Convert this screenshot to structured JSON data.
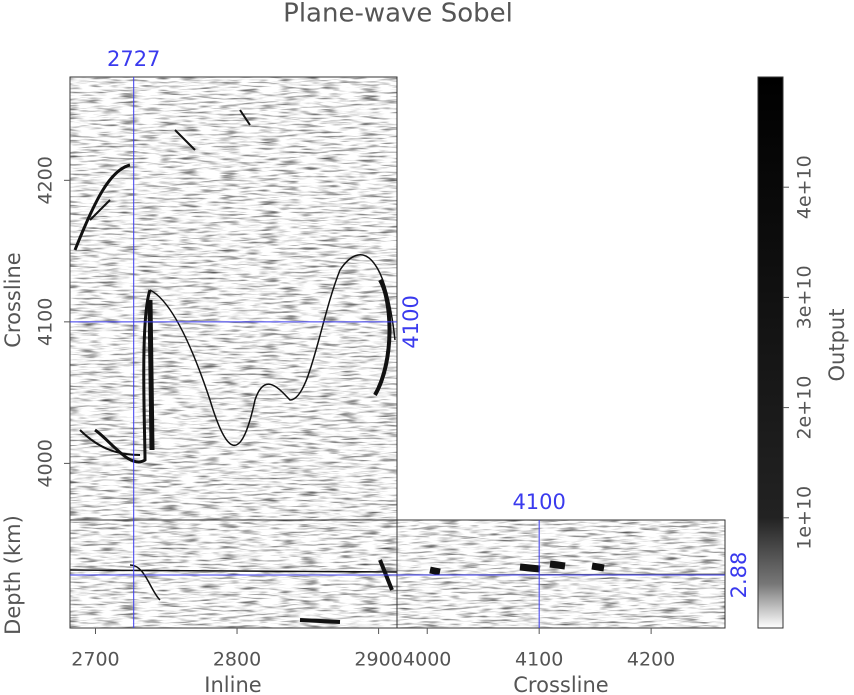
{
  "chart_data": {
    "type": "cube",
    "title": "Plane-wave Sobel",
    "xlabel": "Inline",
    "ylabel": "Crossline",
    "zlabel": "Depth (km)",
    "x2label": "Crossline",
    "colorbar_label": "Output",
    "xlim": [
      2682,
      2913
    ],
    "xticks": [
      2700,
      2800,
      2900
    ],
    "ylim": [
      3960,
      4273
    ],
    "yticks": [
      4000,
      4100,
      4200
    ],
    "x2lim": [
      3973,
      4266
    ],
    "x2ticks": [
      4000,
      4100,
      4200
    ],
    "clim": [
      0,
      50000000000
    ],
    "cticks": [
      {
        "value": 10000000000,
        "label": "1e+10"
      },
      {
        "value": 20000000000,
        "label": "2e+10"
      },
      {
        "value": 30000000000,
        "label": "3e+10"
      },
      {
        "value": 40000000000,
        "label": "4e+10"
      }
    ],
    "slices": {
      "inline": 2727,
      "crossline": 4100,
      "depth": 2.88
    },
    "slice_color": "#3a3aee",
    "axis_color": "#555555"
  }
}
